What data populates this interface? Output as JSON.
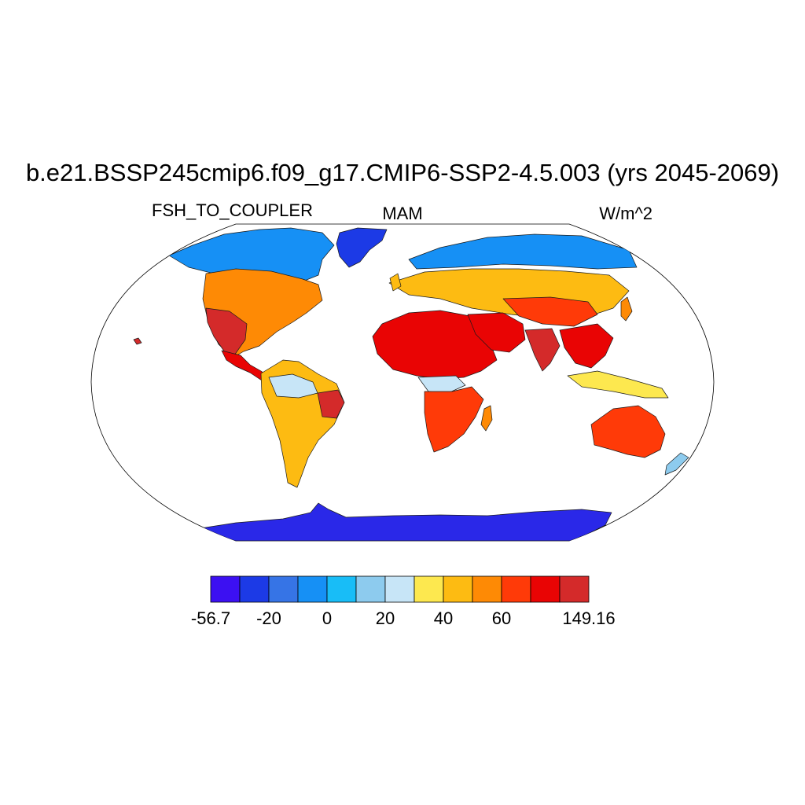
{
  "title": "b.e21.BSSP245cmip6.f09_g17.CMIP6-SSP2-4.5.003 (yrs 2045-2069)",
  "variable": "FSH_TO_COUPLER",
  "season": "MAM",
  "units": "W/m^2",
  "colorbar": {
    "colors": [
      "#3c10f2",
      "#1c3ae6",
      "#3674e6",
      "#1690f5",
      "#18bdf7",
      "#8dcbee",
      "#c7e5f7",
      "#fde84f",
      "#fdbb12",
      "#fe8a05",
      "#ff3a08",
      "#e90404",
      "#d42a2a"
    ],
    "labels": [
      "-56.7",
      "-20",
      "0",
      "20",
      "40",
      "60",
      "149.16"
    ],
    "label_slots": [
      0,
      2,
      4,
      6,
      8,
      10,
      13
    ]
  },
  "land_palette": {
    "antarctica": "#2a28e8",
    "greenland": "#1c3ae6",
    "arctic_cool": "#1690f5",
    "arctic_light": "#8dcbee",
    "pale": "#c7e5f7",
    "yellow": "#fde84f",
    "amber": "#fdbb12",
    "orange": "#fe8a05",
    "redorange": "#ff3a08",
    "red": "#e90404",
    "deepred": "#d42a2a"
  }
}
